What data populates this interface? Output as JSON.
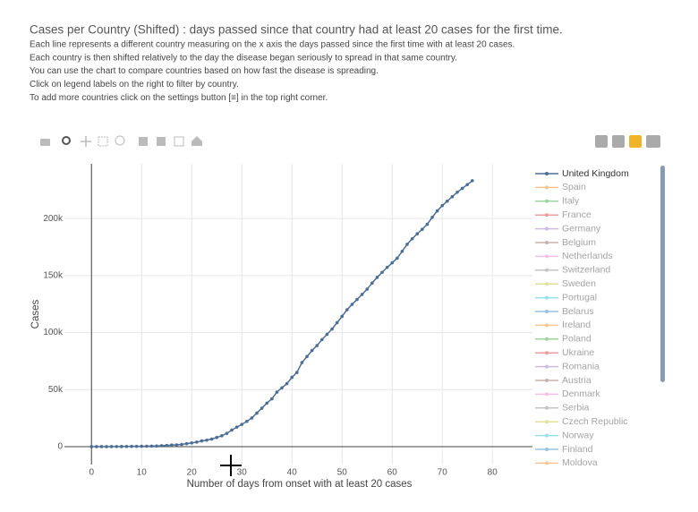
{
  "chart_data": {
    "type": "line",
    "title": "Cases per Country (Shifted) : days passed since that country had at least 20 cases for the first time.",
    "notes": [
      "Each line represents a different country measuring on the x axis the days passed since the first time with at least 20 cases.",
      "Each country is then shifted relatively to the day the disease began seriously to spread in that same country.",
      "You can use the chart to compare countries based on how fast the disease is spreading.",
      "Click on legend labels on the right to filter by country.",
      "To add more countries click on the settings button [≡] in the top right corner."
    ],
    "x_label": "Number of days from onset with at least 20 cases",
    "y_label": "Cases",
    "xlim": [
      -5.4,
      88
    ],
    "xticks": [
      0,
      10,
      20,
      30,
      40,
      50,
      60,
      70,
      80
    ],
    "ylim": [
      -15700,
      248000
    ],
    "yticks": [
      0,
      {
        "value": 50000,
        "label": "50k"
      },
      {
        "value": 100000,
        "label": "100k"
      },
      {
        "value": 150000,
        "label": "150k"
      },
      {
        "value": 200000,
        "label": "200k"
      }
    ],
    "grid": true,
    "series": [
      {
        "name": "United Kingdom",
        "color": "#4c6e95",
        "x": [
          0,
          1,
          2,
          3,
          4,
          5,
          6,
          7,
          8,
          9,
          10,
          11,
          12,
          13,
          14,
          15,
          16,
          17,
          18,
          19,
          20,
          21,
          22,
          23,
          24,
          25,
          26,
          27,
          28,
          29,
          30,
          31,
          32,
          33,
          34,
          35,
          36,
          37,
          38,
          39,
          40,
          41,
          42,
          43,
          44,
          45,
          46,
          47,
          48,
          49,
          50,
          51,
          52,
          53,
          54,
          55,
          56,
          57,
          58,
          59,
          60,
          61,
          62,
          63,
          64,
          65,
          66,
          67,
          68,
          69,
          70,
          71,
          72,
          73,
          74,
          75,
          76
        ],
        "values": [
          20,
          23,
          36,
          40,
          51,
          85,
          115,
          163,
          206,
          273,
          321,
          373,
          456,
          590,
          797,
          1061,
          1391,
          1543,
          1950,
          2626,
          3269,
          3983,
          5018,
          5683,
          6650,
          8077,
          9529,
          11658,
          14543,
          17089,
          19522,
          22141,
          25150,
          29474,
          33718,
          38168,
          41903,
          47806,
          51608,
          55242,
          60733,
          65077,
          73758,
          78991,
          84279,
          88621,
          93873,
          98476,
          103093,
          108692,
          114217,
          120067,
          124743,
          129044,
          133495,
          138078,
          143464,
          148377,
          152840,
          157149,
          161145,
          165221,
          171253,
          177454,
          182260,
          186599,
          190584,
          194990,
          201101,
          206715,
          211364,
          215260,
          219183,
          223060,
          226463,
          229705,
          233151
        ]
      }
    ],
    "hidden_series": [
      {
        "name": "Spain",
        "color": "#ff7f0e"
      },
      {
        "name": "Italy",
        "color": "#2ca02c"
      },
      {
        "name": "France",
        "color": "#d62728"
      },
      {
        "name": "Germany",
        "color": "#9467bd"
      },
      {
        "name": "Belgium",
        "color": "#8c564b"
      },
      {
        "name": "Netherlands",
        "color": "#e377c2"
      },
      {
        "name": "Switzerland",
        "color": "#7f7f7f"
      },
      {
        "name": "Sweden",
        "color": "#bcbd22"
      },
      {
        "name": "Portugal",
        "color": "#17becf"
      },
      {
        "name": "Belarus",
        "color": "#1f77b4"
      },
      {
        "name": "Ireland",
        "color": "#ff7f0e"
      },
      {
        "name": "Poland",
        "color": "#2ca02c"
      },
      {
        "name": "Ukraine",
        "color": "#d62728"
      },
      {
        "name": "Romania",
        "color": "#9467bd"
      },
      {
        "name": "Austria",
        "color": "#8c564b"
      },
      {
        "name": "Denmark",
        "color": "#e377c2"
      },
      {
        "name": "Serbia",
        "color": "#7f7f7f"
      },
      {
        "name": "Czech Republic",
        "color": "#bcbd22"
      },
      {
        "name": "Norway",
        "color": "#17becf"
      },
      {
        "name": "Finland",
        "color": "#1f77b4"
      },
      {
        "name": "Moldova",
        "color": "#ff7f0e"
      }
    ]
  }
}
